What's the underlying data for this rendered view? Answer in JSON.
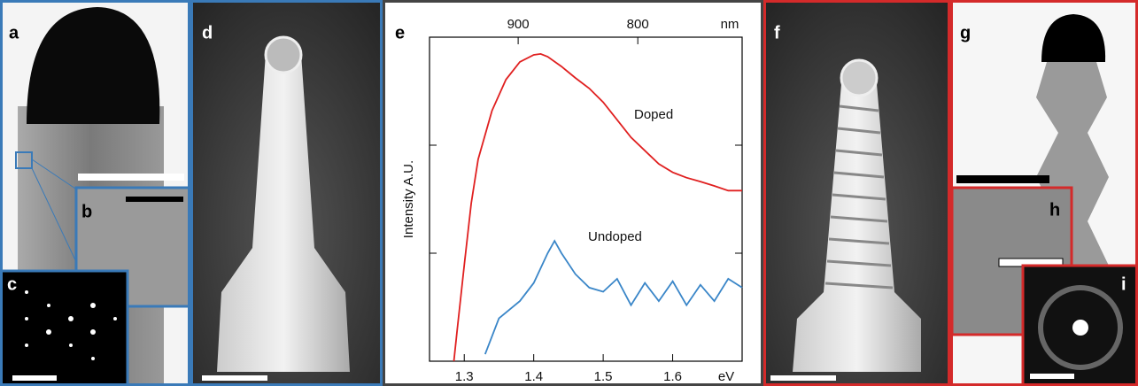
{
  "panels": {
    "a": "a",
    "b": "b",
    "c": "c",
    "d": "d",
    "e": "e",
    "f": "f",
    "g": "g",
    "h": "h",
    "i": "i"
  },
  "chart_data": {
    "type": "line",
    "x_unit": "eV",
    "x2_unit": "nm",
    "ylabel": "Intensity A.U.",
    "log_y": true,
    "xlim": [
      1.25,
      1.7
    ],
    "xticks": [
      1.3,
      1.4,
      1.5,
      1.6
    ],
    "x2ticks": [
      900,
      800
    ],
    "ylim": [
      1,
      1000
    ],
    "yticks": [
      1,
      10,
      100,
      1000
    ],
    "annotations": [
      "Doped",
      "Undoped"
    ],
    "series": [
      {
        "name": "Doped",
        "color": "#e02020",
        "x": [
          1.285,
          1.29,
          1.3,
          1.31,
          1.32,
          1.34,
          1.36,
          1.38,
          1.4,
          1.41,
          1.42,
          1.44,
          1.46,
          1.48,
          1.5,
          1.52,
          1.54,
          1.56,
          1.58,
          1.6,
          1.62,
          1.64,
          1.66,
          1.68,
          1.7
        ],
        "values": [
          1,
          2,
          7.7,
          29,
          74,
          209,
          405,
          590,
          686,
          700,
          660,
          535,
          420,
          335,
          250,
          172,
          118,
          89,
          67,
          56,
          50,
          46,
          42,
          38,
          38
        ]
      },
      {
        "name": "Undoped",
        "color": "#3a86c8",
        "x": [
          1.33,
          1.35,
          1.38,
          1.4,
          1.42,
          1.43,
          1.44,
          1.46,
          1.48,
          1.5,
          1.52,
          1.54,
          1.56,
          1.58,
          1.6,
          1.62,
          1.64,
          1.66,
          1.68,
          1.7
        ],
        "values": [
          1.16,
          2.5,
          3.6,
          5.3,
          10,
          13,
          10,
          6.4,
          4.8,
          4.4,
          5.8,
          3.3,
          5.3,
          3.6,
          5.5,
          3.3,
          5.1,
          3.6,
          5.8,
          4.8
        ]
      }
    ]
  }
}
